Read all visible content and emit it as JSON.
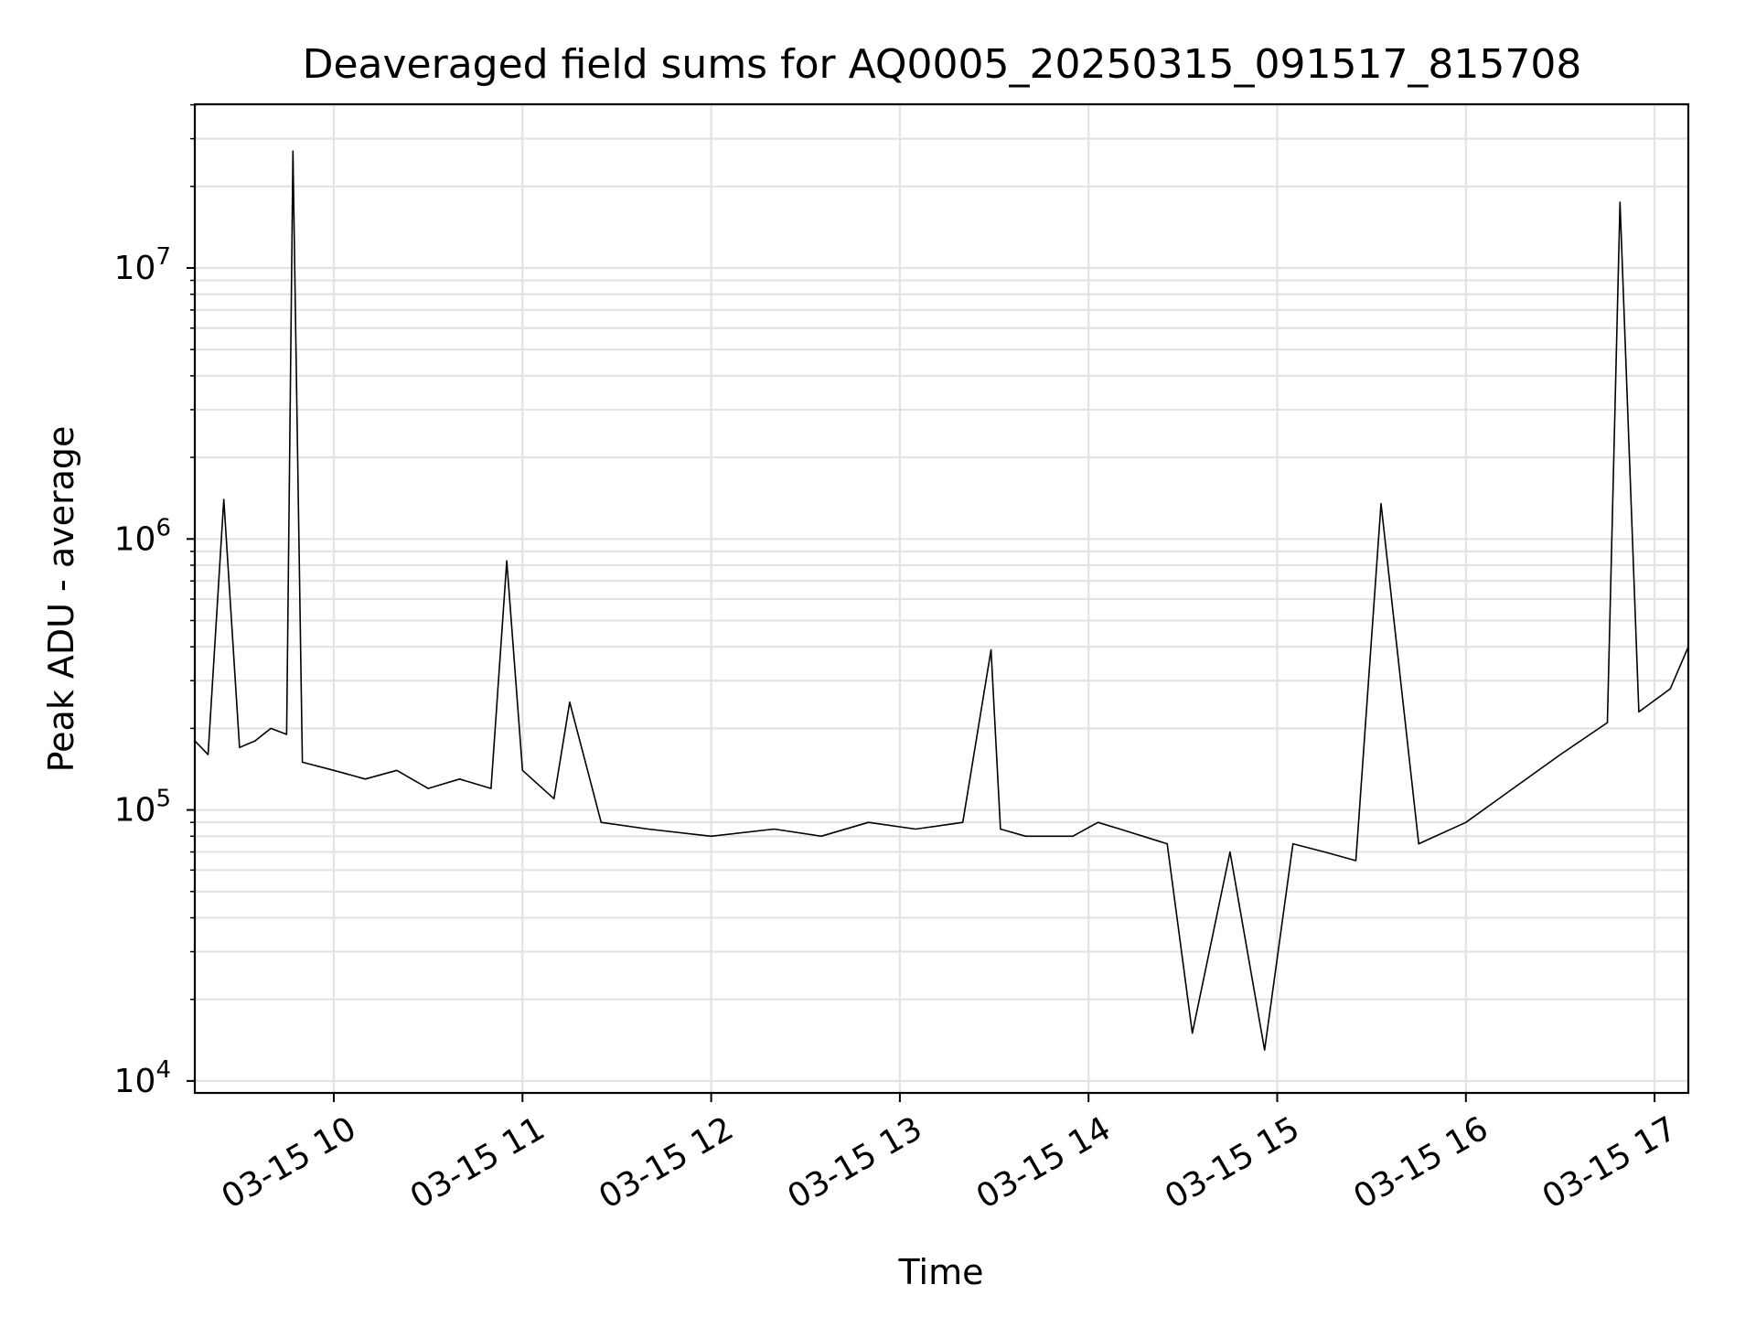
{
  "chart_data": {
    "type": "line",
    "title": "Deaveraged field sums for AQ0005_20250315_091517_815708",
    "xlabel": "Time",
    "ylabel": "Peak ADU - average",
    "yscale": "log",
    "ylim": [
      9000,
      40000000
    ],
    "xlim": [
      "2025-03-15 09:15",
      "2025-03-15 17:11"
    ],
    "grid": true,
    "line_color": "#000000",
    "x_ticks": [
      "03-15 10",
      "03-15 11",
      "03-15 12",
      "03-15 13",
      "03-15 14",
      "03-15 15",
      "03-15 16",
      "03-15 17"
    ],
    "y_ticks": [
      {
        "value": 10000,
        "base": "10",
        "exp": "4"
      },
      {
        "value": 100000,
        "base": "10",
        "exp": "5"
      },
      {
        "value": 1000000,
        "base": "10",
        "exp": "6"
      },
      {
        "value": 10000000,
        "base": "10",
        "exp": "7"
      }
    ],
    "series": [
      {
        "x": [
          "2025-03-15 09:15",
          "2025-03-15 09:20",
          "2025-03-15 09:25",
          "2025-03-15 09:30",
          "2025-03-15 09:35",
          "2025-03-15 09:40",
          "2025-03-15 09:45",
          "2025-03-15 09:47",
          "2025-03-15 09:50",
          "2025-03-15 10:00",
          "2025-03-15 10:10",
          "2025-03-15 10:20",
          "2025-03-15 10:30",
          "2025-03-15 10:40",
          "2025-03-15 10:50",
          "2025-03-15 10:55",
          "2025-03-15 11:00",
          "2025-03-15 11:10",
          "2025-03-15 11:15",
          "2025-03-15 11:25",
          "2025-03-15 11:40",
          "2025-03-15 12:00",
          "2025-03-15 12:20",
          "2025-03-15 12:35",
          "2025-03-15 12:50",
          "2025-03-15 13:05",
          "2025-03-15 13:20",
          "2025-03-15 13:29",
          "2025-03-15 13:32",
          "2025-03-15 13:40",
          "2025-03-15 13:55",
          "2025-03-15 14:03",
          "2025-03-15 14:10",
          "2025-03-15 14:25",
          "2025-03-15 14:33",
          "2025-03-15 14:45",
          "2025-03-15 14:56",
          "2025-03-15 15:05",
          "2025-03-15 15:15",
          "2025-03-15 15:25",
          "2025-03-15 15:33",
          "2025-03-15 15:45",
          "2025-03-15 16:00",
          "2025-03-15 16:15",
          "2025-03-15 16:30",
          "2025-03-15 16:45",
          "2025-03-15 16:49",
          "2025-03-15 16:55",
          "2025-03-15 17:05",
          "2025-03-15 17:11"
        ],
        "y": [
          180000,
          160000,
          1400000,
          170000,
          180000,
          200000,
          190000,
          27000000,
          150000,
          140000,
          130000,
          140000,
          120000,
          130000,
          120000,
          830000,
          140000,
          110000,
          250000,
          90000,
          85000,
          80000,
          85000,
          80000,
          90000,
          85000,
          90000,
          390000,
          85000,
          80000,
          80000,
          90000,
          85000,
          75000,
          15000,
          70000,
          13000,
          75000,
          70000,
          65000,
          1350000,
          75000,
          90000,
          120000,
          160000,
          210000,
          17500000,
          230000,
          280000,
          400000
        ]
      }
    ]
  }
}
